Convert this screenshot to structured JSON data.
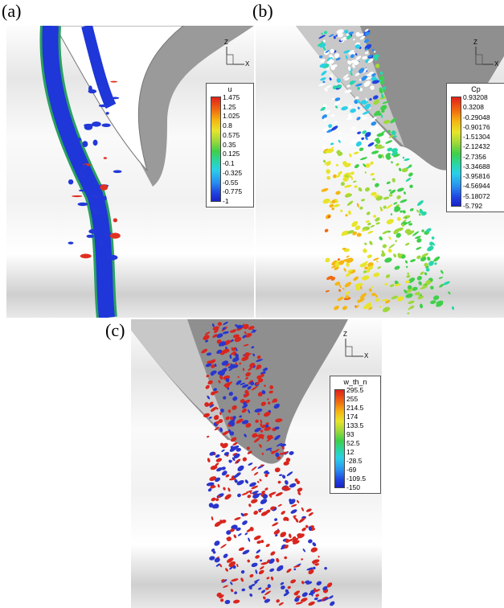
{
  "panels": [
    {
      "label": "(a)",
      "axes": {
        "z": "Z",
        "x": "X"
      },
      "legend": {
        "title": "u",
        "labels": [
          "1.475",
          "1.25",
          "1.025",
          "0.8",
          "0.575",
          "0.35",
          "0.125",
          "-0.1",
          "-0.325",
          "-0.55",
          "-0.775",
          "-1"
        ]
      }
    },
    {
      "label": "(b)",
      "axes": {
        "z": "Z",
        "x": "X"
      },
      "legend": {
        "title": "Cp",
        "labels": [
          "0.93208",
          "0.3208",
          "-0.29048",
          "-0.90176",
          "-1.51304",
          "-2.12432",
          "-2.7356",
          "-3.34688",
          "-3.95816",
          "-4.56944",
          "-5.18072",
          "-5.792"
        ]
      }
    },
    {
      "label": "(c)",
      "axes": {
        "z": "Z",
        "x": "X"
      },
      "legend": {
        "title": "w_th_n",
        "labels": [
          "295.5",
          "255",
          "214.5",
          "174",
          "133.5",
          "93",
          "52.5",
          "12",
          "-28.5",
          "-69",
          "-109.5",
          "-150"
        ]
      }
    }
  ]
}
